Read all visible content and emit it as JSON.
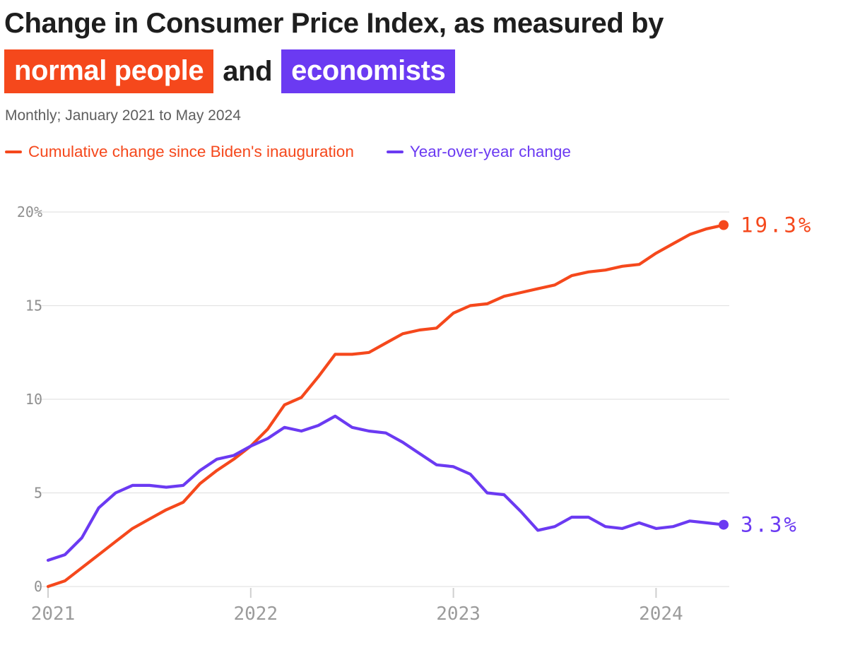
{
  "header": {
    "title_line1": "Change in Consumer Price Index, as measured by",
    "highlight_people": "normal people",
    "connector": "and",
    "highlight_economists": "economists",
    "subtitle": "Monthly; January 2021 to May 2024"
  },
  "colors": {
    "highlight_orange": "#f5481c",
    "highlight_purple": "#6b3af2",
    "title_text": "#1e1e1e",
    "grid": "#e3e3e3",
    "axis_tick": "#cfcfcf",
    "axis_label": "#9b9b9b"
  },
  "chart_data": {
    "type": "line",
    "title": "Change in Consumer Price Index, as measured by normal people and economists",
    "subtitle": "Monthly; January 2021 to May 2024",
    "frequency": "monthly",
    "x_start": "2021-01",
    "x_end": "2024-05",
    "n_points": 41,
    "grid": "horizontal",
    "legend_position": "top",
    "ylim": [
      0,
      20
    ],
    "yticks": [
      0,
      5,
      10,
      15,
      20
    ],
    "ytick_labels": [
      "0",
      "5",
      "10",
      "15",
      "20%"
    ],
    "xticks": [
      {
        "label": "2021",
        "index": 0
      },
      {
        "label": "2022",
        "index": 12
      },
      {
        "label": "2023",
        "index": 24
      },
      {
        "label": "2024",
        "index": 36
      }
    ],
    "series": [
      {
        "name": "Cumulative change since Biden's inauguration",
        "color": "#f5481c",
        "end_label": "19.3%",
        "values": [
          0.0,
          0.3,
          1.0,
          1.7,
          2.4,
          3.1,
          3.6,
          4.1,
          4.5,
          5.5,
          6.2,
          6.8,
          7.5,
          8.4,
          9.7,
          10.1,
          11.2,
          12.4,
          12.4,
          12.5,
          13.0,
          13.5,
          13.7,
          13.8,
          14.6,
          15.0,
          15.1,
          15.5,
          15.7,
          15.9,
          16.1,
          16.6,
          16.8,
          16.9,
          17.1,
          17.2,
          17.8,
          18.3,
          18.8,
          19.1,
          19.3
        ]
      },
      {
        "name": "Year-over-year change",
        "color": "#6b3af2",
        "end_label": "3.3%",
        "values": [
          1.4,
          1.7,
          2.6,
          4.2,
          5.0,
          5.4,
          5.4,
          5.3,
          5.4,
          6.2,
          6.8,
          7.0,
          7.5,
          7.9,
          8.5,
          8.3,
          8.6,
          9.1,
          8.5,
          8.3,
          8.2,
          7.7,
          7.1,
          6.5,
          6.4,
          6.0,
          5.0,
          4.9,
          4.0,
          3.0,
          3.2,
          3.7,
          3.7,
          3.2,
          3.1,
          3.4,
          3.1,
          3.2,
          3.5,
          3.4,
          3.3
        ]
      }
    ]
  }
}
